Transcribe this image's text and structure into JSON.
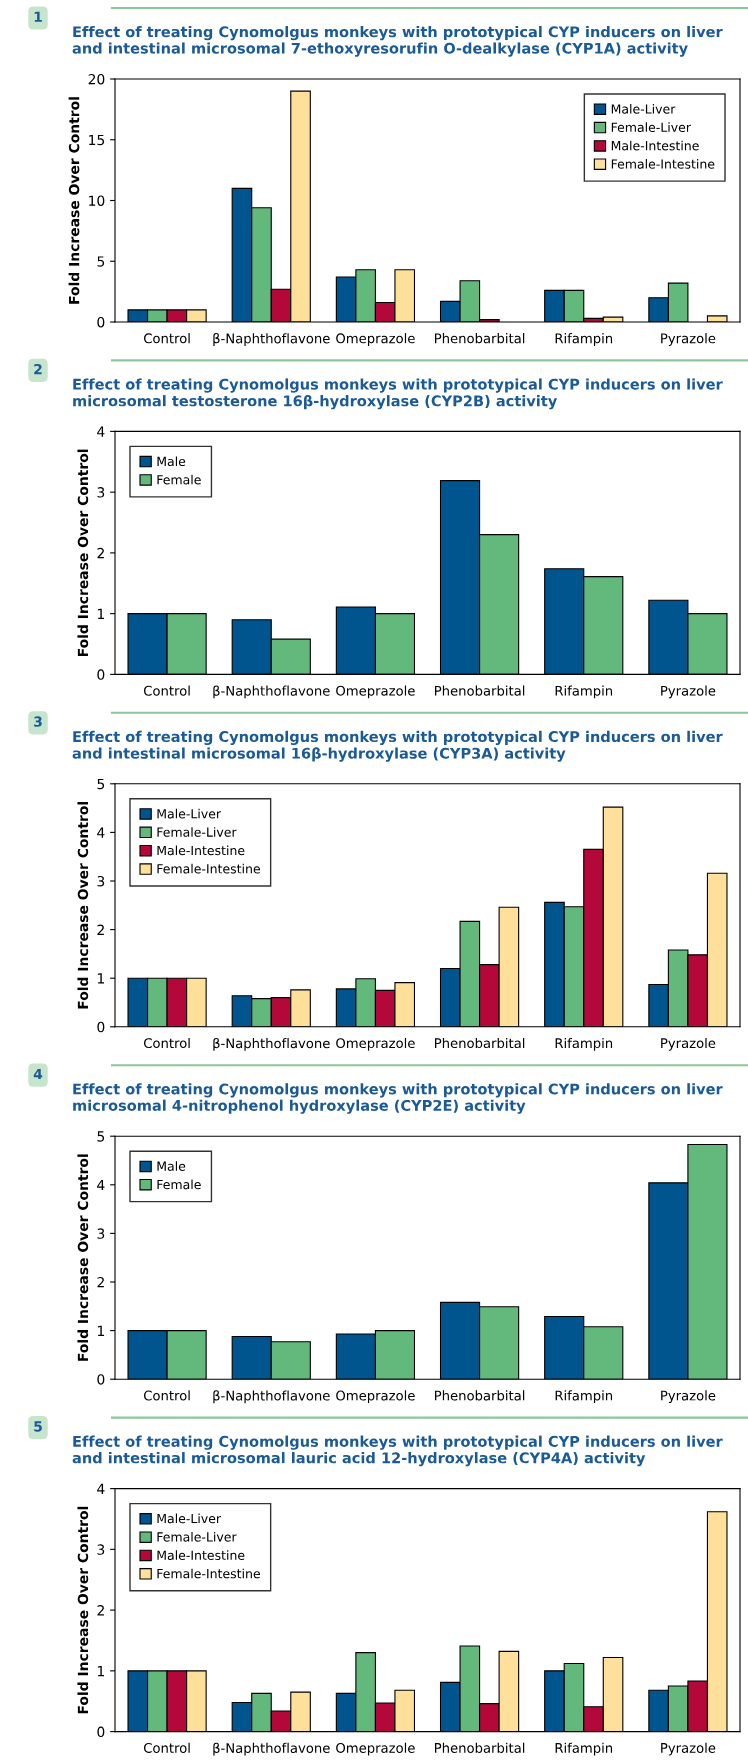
{
  "chart_data": [
    {
      "type": "bar",
      "annotations": [
        "1"
      ],
      "title": "Effect of treating Cynomolgus monkeys with prototypical CYP inducers on liver and intestinal microsomal 7-ethoxyresorufin O-dealkylase (CYP1A) activity",
      "ylabel": "Fold Increase Over Control",
      "categories": [
        "Control",
        "β-Naphthoflavone",
        "Omeprazole",
        "Phenobarbital",
        "Rifampin",
        "Pyrazole"
      ],
      "ylim": [
        0,
        20
      ],
      "yticks": [
        0,
        5,
        10,
        15,
        20
      ],
      "legend": "top right",
      "series": [
        {
          "name": "Male-Liver",
          "color": "#00558f",
          "values": [
            1,
            11,
            3.7,
            1.7,
            2.6,
            2.0
          ]
        },
        {
          "name": "Female-Liver",
          "color": "#63b87c",
          "values": [
            1,
            9.4,
            4.3,
            3.4,
            2.6,
            3.2
          ]
        },
        {
          "name": "Male-Intestine",
          "color": "#b5083a",
          "values": [
            1,
            2.7,
            1.6,
            0.2,
            0.3,
            null
          ]
        },
        {
          "name": "Female-Intestine",
          "color": "#ffe09a",
          "values": [
            1,
            19,
            4.3,
            null,
            0.4,
            0.5
          ]
        }
      ]
    },
    {
      "type": "bar",
      "annotations": [
        "2"
      ],
      "title": "Effect of treating Cynomolgus monkeys with prototypical CYP inducers on liver microsomal testosterone 16β-hydroxylase (CYP2B) activity",
      "ylabel": "Fold Increase Over Control",
      "categories": [
        "Control",
        "β-Naphthoflavone",
        "Omeprazole",
        "Phenobarbital",
        "Rifampin",
        "Pyrazole"
      ],
      "ylim": [
        0,
        4
      ],
      "yticks": [
        0,
        1,
        2,
        3,
        4
      ],
      "legend": "top left",
      "series": [
        {
          "name": "Male",
          "color": "#00558f",
          "values": [
            1,
            0.9,
            1.11,
            3.19,
            1.74,
            1.22
          ]
        },
        {
          "name": "Female",
          "color": "#63b87c",
          "values": [
            1,
            0.58,
            1.0,
            2.3,
            1.61,
            1.0
          ]
        }
      ]
    },
    {
      "type": "bar",
      "annotations": [
        "3"
      ],
      "title": "Effect of treating Cynomolgus monkeys with prototypical CYP inducers on liver and intestinal microsomal 16β-hydroxylase (CYP3A) activity",
      "ylabel": "Fold Increase Over Control",
      "categories": [
        "Control",
        "β-Naphthoflavone",
        "Omeprazole",
        "Phenobarbital",
        "Rifampin",
        "Pyrazole"
      ],
      "ylim": [
        0,
        5
      ],
      "yticks": [
        0,
        1,
        2,
        3,
        4,
        5
      ],
      "legend": "top left",
      "series": [
        {
          "name": "Male-Liver",
          "color": "#00558f",
          "values": [
            1,
            0.64,
            0.78,
            1.2,
            2.56,
            0.87
          ]
        },
        {
          "name": "Female-Liver",
          "color": "#63b87c",
          "values": [
            1,
            0.58,
            0.99,
            2.17,
            2.47,
            1.58
          ]
        },
        {
          "name": "Male-Intestine",
          "color": "#b5083a",
          "values": [
            1,
            0.6,
            0.75,
            1.28,
            3.65,
            1.48
          ]
        },
        {
          "name": "Female-Intestine",
          "color": "#ffe09a",
          "values": [
            1,
            0.76,
            0.91,
            2.46,
            4.52,
            3.16
          ]
        }
      ]
    },
    {
      "type": "bar",
      "annotations": [
        "4"
      ],
      "title": "Effect of treating Cynomolgus monkeys with prototypical CYP inducers on liver microsomal 4-nitrophenol hydroxylase (CYP2E) activity",
      "ylabel": "Fold Increase Over Control",
      "categories": [
        "Control",
        "β-Naphthoflavone",
        "Omeprazole",
        "Phenobarbital",
        "Rifampin",
        "Pyrazole"
      ],
      "ylim": [
        0,
        5
      ],
      "yticks": [
        0,
        1,
        2,
        3,
        4,
        5
      ],
      "legend": "top left",
      "series": [
        {
          "name": "Male",
          "color": "#00558f",
          "values": [
            1,
            0.88,
            0.93,
            1.58,
            1.29,
            4.04
          ]
        },
        {
          "name": "Female",
          "color": "#63b87c",
          "values": [
            1,
            0.77,
            1.0,
            1.49,
            1.08,
            4.83
          ]
        }
      ]
    },
    {
      "type": "bar",
      "annotations": [
        "5"
      ],
      "title": "Effect of treating Cynomolgus monkeys with prototypical CYP inducers on liver and intestinal microsomal lauric acid 12-hydroxylase (CYP4A) activity",
      "ylabel": "Fold Increase Over Control",
      "categories": [
        "Control",
        "β-Naphthoflavone",
        "Omeprazole",
        "Phenobarbital",
        "Rifampin",
        "Pyrazole"
      ],
      "ylim": [
        0,
        4
      ],
      "yticks": [
        0,
        1,
        2,
        3,
        4
      ],
      "legend": "top left",
      "series": [
        {
          "name": "Male-Liver",
          "color": "#00558f",
          "values": [
            1,
            0.48,
            0.63,
            0.81,
            1.0,
            0.68
          ]
        },
        {
          "name": "Female-Liver",
          "color": "#63b87c",
          "values": [
            1,
            0.63,
            1.3,
            1.41,
            1.12,
            0.75
          ]
        },
        {
          "name": "Male-Intestine",
          "color": "#b5083a",
          "values": [
            1,
            0.34,
            0.47,
            0.46,
            0.41,
            0.83
          ]
        },
        {
          "name": "Female-Intestine",
          "color": "#ffe09a",
          "values": [
            1,
            0.65,
            0.68,
            1.32,
            1.22,
            3.62
          ]
        }
      ]
    }
  ]
}
